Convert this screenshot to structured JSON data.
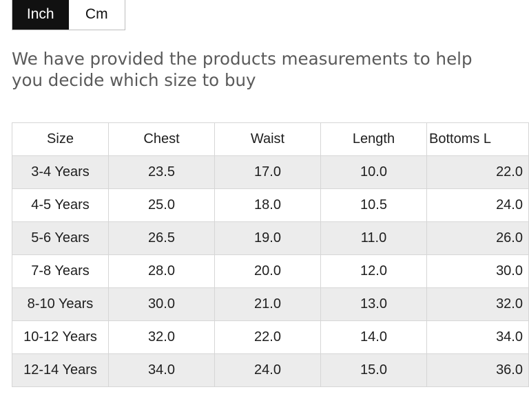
{
  "unit_toggle": {
    "inch_label": "Inch",
    "cm_label": "Cm",
    "selected": "Inch"
  },
  "intro_text": "We have provided the products measurements to help you decide which size to buy",
  "size_table": {
    "headers": [
      "Size",
      "Chest",
      "Waist",
      "Length",
      "Bottoms L"
    ],
    "rows": [
      [
        "3-4 Years",
        "23.5",
        "17.0",
        "10.0",
        "22.0"
      ],
      [
        "4-5 Years",
        "25.0",
        "18.0",
        "10.5",
        "24.0"
      ],
      [
        "5-6 Years",
        "26.5",
        "19.0",
        "11.0",
        "26.0"
      ],
      [
        "7-8 Years",
        "28.0",
        "20.0",
        "12.0",
        "30.0"
      ],
      [
        "8-10 Years",
        "30.0",
        "21.0",
        "13.0",
        "32.0"
      ],
      [
        "10-12 Years",
        "32.0",
        "22.0",
        "14.0",
        "34.0"
      ],
      [
        "12-14 Years",
        "34.0",
        "24.0",
        "15.0",
        "36.0"
      ]
    ]
  },
  "colors": {
    "active_bg": "#111111",
    "stripe": "#ececec",
    "border": "#d6d6d6",
    "intro_text": "#5a5a5a"
  }
}
